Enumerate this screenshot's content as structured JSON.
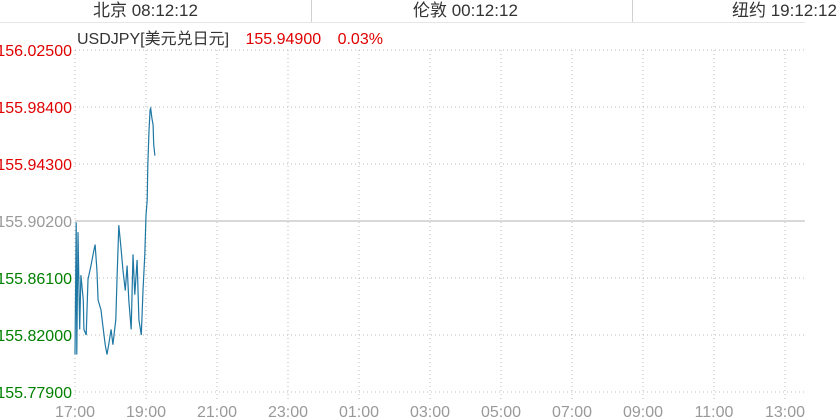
{
  "header": {
    "clocks": [
      "北京 08:12:12",
      "伦敦 00:12:12",
      "纽约 19:12:12"
    ]
  },
  "quote": {
    "symbol": "USDJPY[美元兑日元]",
    "price": "155.94900",
    "change": "0.03%"
  },
  "colors": {
    "up": "#e00000",
    "down": "#008000",
    "neutral": "#999999",
    "line": "#1f77a4"
  },
  "chart_data": {
    "type": "line",
    "y_ticks": [
      "156.02500",
      "155.98400",
      "155.94300",
      "155.90200",
      "155.86100",
      "155.82000",
      "155.77900"
    ],
    "ylim": [
      155.779,
      156.025
    ],
    "reference": 155.902,
    "x_ticks": [
      "17:00",
      "19:00",
      "21:00",
      "23:00",
      "01:00",
      "03:00",
      "05:00",
      "07:00",
      "09:00",
      "11:00",
      "13:00"
    ],
    "grid": true,
    "series": [
      {
        "x": [
          "17:00",
          "17:02",
          "17:03",
          "17:05",
          "17:08",
          "17:10",
          "17:14",
          "17:15",
          "17:19",
          "17:22",
          "17:27",
          "17:32",
          "17:34",
          "17:37",
          "17:39",
          "17:44",
          "17:47",
          "17:51",
          "17:54",
          "17:57",
          "18:01",
          "18:04",
          "18:09",
          "18:11",
          "18:14",
          "18:18",
          "18:21",
          "18:25",
          "18:28",
          "18:31",
          "18:35",
          "18:38",
          "18:41",
          "18:45",
          "18:48",
          "18:52",
          "18:55",
          "18:58",
          "19:00",
          "19:02",
          "19:03",
          "19:05",
          "19:07",
          "19:08",
          "19:10",
          "19:12",
          "19:13",
          "19:15"
        ],
        "values": [
          155.806,
          155.901,
          155.806,
          155.894,
          155.824,
          155.863,
          155.845,
          155.824,
          155.82,
          155.86,
          155.87,
          155.881,
          155.885,
          155.867,
          155.845,
          155.838,
          155.827,
          155.813,
          155.806,
          155.813,
          155.824,
          155.813,
          155.831,
          155.86,
          155.899,
          155.881,
          155.867,
          155.852,
          155.87,
          155.845,
          155.824,
          155.878,
          155.849,
          155.874,
          155.831,
          155.82,
          155.852,
          155.878,
          155.906,
          155.917,
          155.942,
          155.967,
          155.982,
          155.983,
          155.976,
          155.971,
          155.957,
          155.949
        ]
      }
    ]
  }
}
